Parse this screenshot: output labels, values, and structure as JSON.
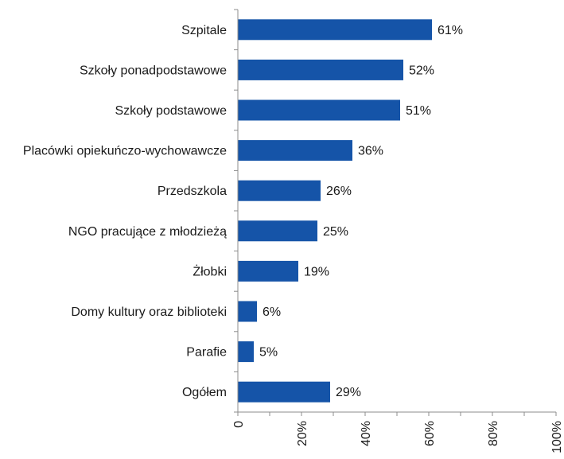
{
  "chart_data": {
    "type": "bar",
    "orientation": "horizontal",
    "categories": [
      "Szpitale",
      "Szkoły ponadpodstawowe",
      "Szkoły podstawowe",
      "Placówki opiekuńczo-wychowawcze",
      "Przedszkola",
      "NGO pracujące z młodzieżą",
      "Żłobki",
      "Domy kultury oraz biblioteki",
      "Parafie",
      "Ogółem"
    ],
    "values": [
      61,
      52,
      51,
      36,
      26,
      25,
      19,
      6,
      5,
      29
    ],
    "value_labels": [
      "61%",
      "52%",
      "51%",
      "36%",
      "26%",
      "25%",
      "19%",
      "6%",
      "5%",
      "29%"
    ],
    "title": "",
    "xlabel": "",
    "ylabel": "",
    "xlim": [
      0,
      100
    ],
    "x_ticks": [
      0,
      20,
      40,
      60,
      80,
      100
    ],
    "x_tick_labels": [
      "0",
      "20%",
      "40%",
      "60%",
      "80%",
      "100%"
    ],
    "grid": false,
    "legend": "none",
    "bar_color": "#1554a8"
  }
}
